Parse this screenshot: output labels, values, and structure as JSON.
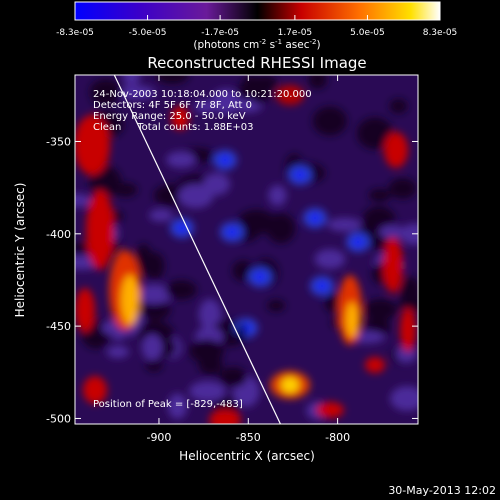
{
  "colorbar": {
    "tick_labels": [
      "-8.3e-05",
      "-5.0e-05",
      "-1.7e-05",
      "1.7e-05",
      "5.0e-05",
      "8.3e-05"
    ],
    "ticks": [
      -8.3e-05,
      -5e-05,
      -1.7e-05,
      1.7e-05,
      5e-05,
      8.3e-05
    ],
    "range": [
      -8.3e-05,
      8.3e-05
    ],
    "unit_label": "(photons cm",
    "unit_sup1": "-2",
    "unit_mid": " s",
    "unit_sup2": "-1",
    "unit_mid2": " asec",
    "unit_sup3": "-2",
    "unit_end": ")",
    "colors": [
      "#0000ff",
      "#3c00c8",
      "#6a1a9a",
      "#000000",
      "#c80000",
      "#ff7000",
      "#ffe000",
      "#ffffff"
    ]
  },
  "chart_data": {
    "type": "heatmap",
    "title": "Reconstructed RHESSI Image",
    "xlabel": "Heliocentric X (arcsec)",
    "ylabel": "Heliocentric Y (arcsec)",
    "xlim": [
      -947,
      -755
    ],
    "ylim": [
      -503,
      -314
    ],
    "x_ticks": [
      -900,
      -850,
      -800
    ],
    "y_ticks": [
      -500,
      -450,
      -400,
      -350
    ],
    "x_tick_labels": [
      "-900",
      "-850",
      "-800"
    ],
    "y_tick_labels": [
      "-500",
      "-450",
      "-400",
      "-350"
    ],
    "limb_line": [
      [
        -925,
        -314
      ],
      [
        -832,
        -503
      ]
    ],
    "peak": [
      -829,
      -483
    ],
    "colormap": "blue-purple-black-red-yellow-white"
  },
  "info": {
    "line1": "24-Nov-2003 10:18:04.000 to 10:21:20.000",
    "line2": "Detectors: 4F 5F 6F 7F 8F, Att 0",
    "line3": "Energy Range: 25.0 - 50.0 keV",
    "line4": "Clean     Total counts: 1.88E+03",
    "peak_label": "Position of Peak = [-829,-483]"
  },
  "footer": {
    "timestamp": "30-May-2013 12:02"
  }
}
